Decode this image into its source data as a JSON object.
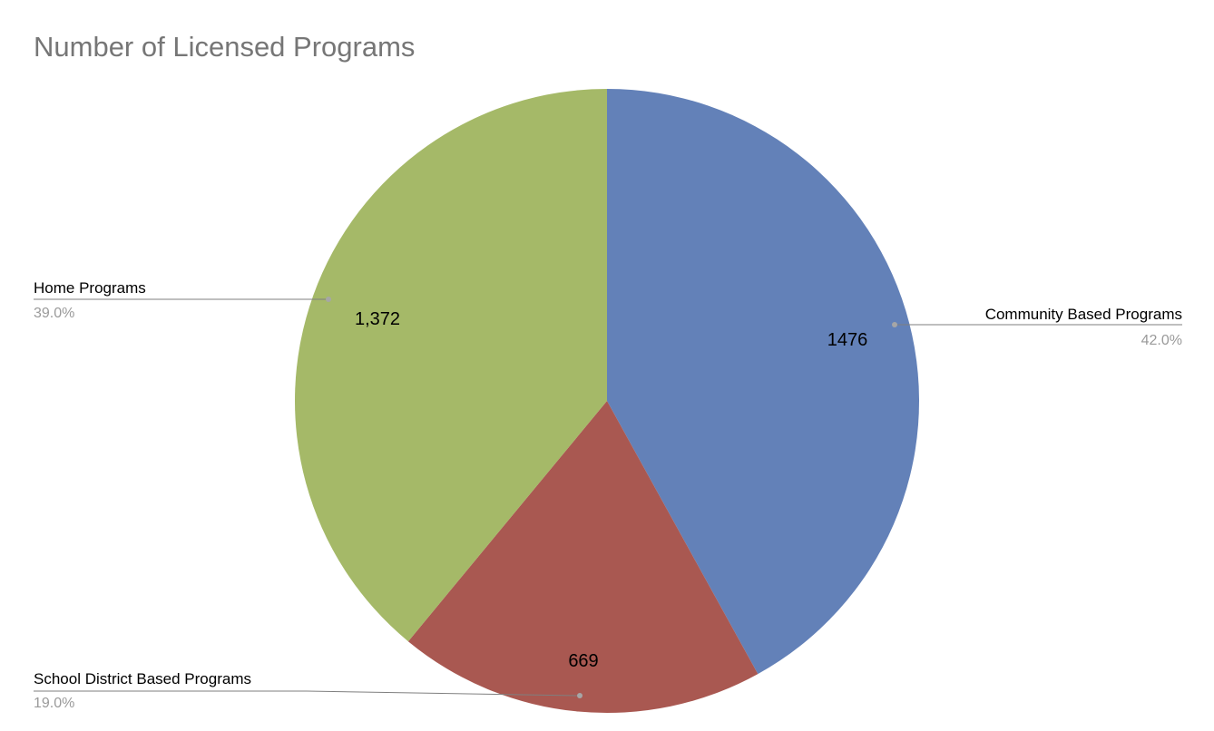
{
  "chart_data": {
    "type": "pie",
    "title": "Number of Licensed Programs",
    "slices": [
      {
        "key": "community",
        "label": "Community Based Programs",
        "value": 1476,
        "value_label": "1476",
        "percent_label": "42.0%",
        "color": "#6381B8"
      },
      {
        "key": "school",
        "label": "School District Based Programs",
        "value": 669,
        "value_label": "669",
        "percent_label": "19.0%",
        "color": "#A95851"
      },
      {
        "key": "home",
        "label": "Home Programs",
        "value": 1372,
        "value_label": "1,372",
        "percent_label": "39.0%",
        "color": "#A5B968"
      }
    ]
  }
}
